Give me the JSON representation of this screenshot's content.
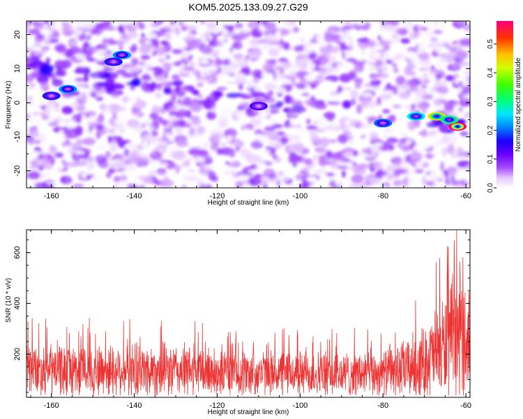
{
  "title": "KOM5.2025.133.09.27.G29",
  "chart_data": [
    {
      "type": "heatmap",
      "xlabel": "Height of straight line (km)",
      "ylabel": "Frequency (Hz)",
      "xlim": [
        -166,
        -59
      ],
      "ylim": [
        -25,
        24
      ],
      "xticks": [
        "-160",
        "-140",
        "-120",
        "-100",
        "-80",
        "-60"
      ],
      "yticks": [
        "20",
        "10",
        "0",
        "-10",
        "-20"
      ],
      "colorbar": {
        "label": "Normalized spectral amplitude",
        "range": [
          0.0,
          0.58
        ],
        "ticks": [
          "0.0",
          "0.1",
          "0.2",
          "0.3",
          "0.4",
          "0.5"
        ]
      },
      "features": [
        {
          "x": -160,
          "y": 2,
          "value": 0.15
        },
        {
          "x": -156,
          "y": 4,
          "value": 0.2
        },
        {
          "x": -143,
          "y": 14,
          "value": 0.2
        },
        {
          "x": -145,
          "y": 12,
          "value": 0.15
        },
        {
          "x": -110,
          "y": -1,
          "value": 0.12
        },
        {
          "x": -80,
          "y": -6,
          "value": 0.18
        },
        {
          "x": -72,
          "y": -4,
          "value": 0.25
        },
        {
          "x": -67,
          "y": -4,
          "value": 0.42
        },
        {
          "x": -62,
          "y": -7,
          "value": 0.58
        },
        {
          "x": -64,
          "y": -5,
          "value": 0.3
        }
      ]
    },
    {
      "type": "line",
      "xlabel": "Height of straight line (km)",
      "ylabel": "SNR (10 * v/v)",
      "xlim": [
        -166,
        -59
      ],
      "ylim": [
        30,
        690
      ],
      "xticks": [
        "-160",
        "-140",
        "-120",
        "-100",
        "-80",
        "-60"
      ],
      "yticks": [
        "200",
        "400",
        "600"
      ],
      "color": "#ee3333",
      "envelope": {
        "x": [
          -166,
          -160,
          -150,
          -140,
          -130,
          -120,
          -110,
          -100,
          -90,
          -80,
          -75,
          -70,
          -65,
          -62,
          -59
        ],
        "baseline": [
          140,
          140,
          135,
          140,
          135,
          130,
          125,
          125,
          120,
          125,
          140,
          170,
          230,
          270,
          260
        ],
        "amplitude": [
          110,
          110,
          110,
          115,
          110,
          105,
          95,
          95,
          95,
          100,
          120,
          150,
          220,
          270,
          230
        ]
      }
    }
  ]
}
